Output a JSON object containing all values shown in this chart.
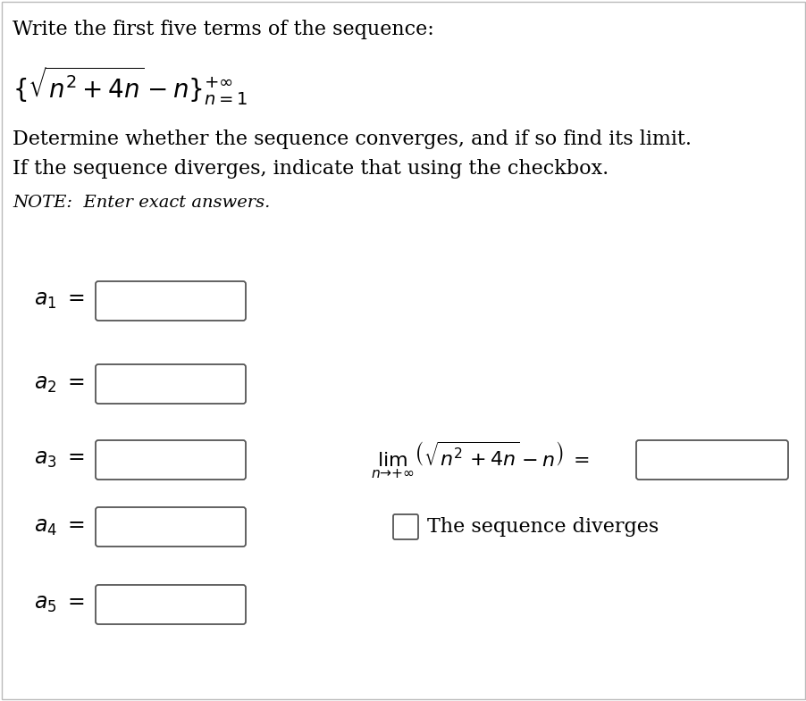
{
  "bg_color": "#ffffff",
  "border_color": "#bbbbbb",
  "text_color": "#000000",
  "title_line": "Write the first five terms of the sequence:",
  "desc_line1": "Determine whether the sequence converges, and if so find its limit.",
  "desc_line2": "If the sequence diverges, indicate that using the checkbox.",
  "note_line": "NOTE:  Enter exact answers.",
  "labels": [
    "$a_1$",
    "$a_2$",
    "$a_3$",
    "$a_4$",
    "$a_5$"
  ],
  "diverges_label": "The sequence diverges",
  "box_color": "#ffffff",
  "box_border": "#555555",
  "font_size_title": 16,
  "font_size_body": 16,
  "font_size_note": 14,
  "font_size_labels": 17,
  "font_size_lim": 16
}
